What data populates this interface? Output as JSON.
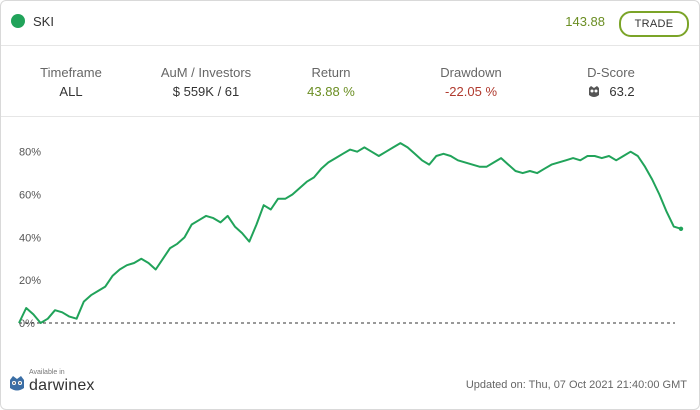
{
  "header": {
    "name": "SKI",
    "price": "143.88",
    "trade_label": "TRADE",
    "status_color": "#21a35a"
  },
  "stats": {
    "timeframe": {
      "label": "Timeframe",
      "value": "ALL"
    },
    "aum": {
      "label": "AuM / Investors",
      "value": "$ 559K / 61"
    },
    "return": {
      "label": "Return",
      "value": "43.88 %"
    },
    "drawdown": {
      "label": "Drawdown",
      "value": "-22.05 %"
    },
    "dscore": {
      "label": "D-Score",
      "value": "63.2",
      "icon": "owl-icon"
    }
  },
  "chart_data": {
    "type": "line",
    "y_tick_labels": [
      "80%",
      "60%",
      "40%",
      "20%",
      "0%"
    ],
    "ylim": [
      0,
      85
    ],
    "baseline": 0,
    "line_color": "#21a35a",
    "series": [
      {
        "values": [
          0,
          7,
          4,
          0,
          2,
          6,
          5,
          3,
          2,
          10,
          13,
          15,
          17,
          22,
          25,
          27,
          28,
          30,
          28,
          25,
          30,
          35,
          37,
          40,
          46,
          48,
          50,
          49,
          47,
          50,
          45,
          42,
          38,
          46,
          55,
          53,
          58,
          58,
          60,
          63,
          66,
          68,
          72,
          75,
          77,
          79,
          81,
          80,
          82,
          80,
          78,
          80,
          82,
          84,
          82,
          79,
          76,
          74,
          78,
          79,
          78,
          76,
          75,
          74,
          73,
          73,
          75,
          77,
          74,
          71,
          70,
          71,
          70,
          72,
          74,
          75,
          76,
          77,
          76,
          78,
          78,
          77,
          78,
          76,
          78,
          80,
          78,
          73,
          67,
          60,
          52,
          45,
          44
        ]
      }
    ]
  },
  "footer": {
    "available_in": "Available in",
    "brand": "darwinex",
    "updated": "Updated on: Thu, 07 Oct 2021 21:40:00 GMT"
  }
}
